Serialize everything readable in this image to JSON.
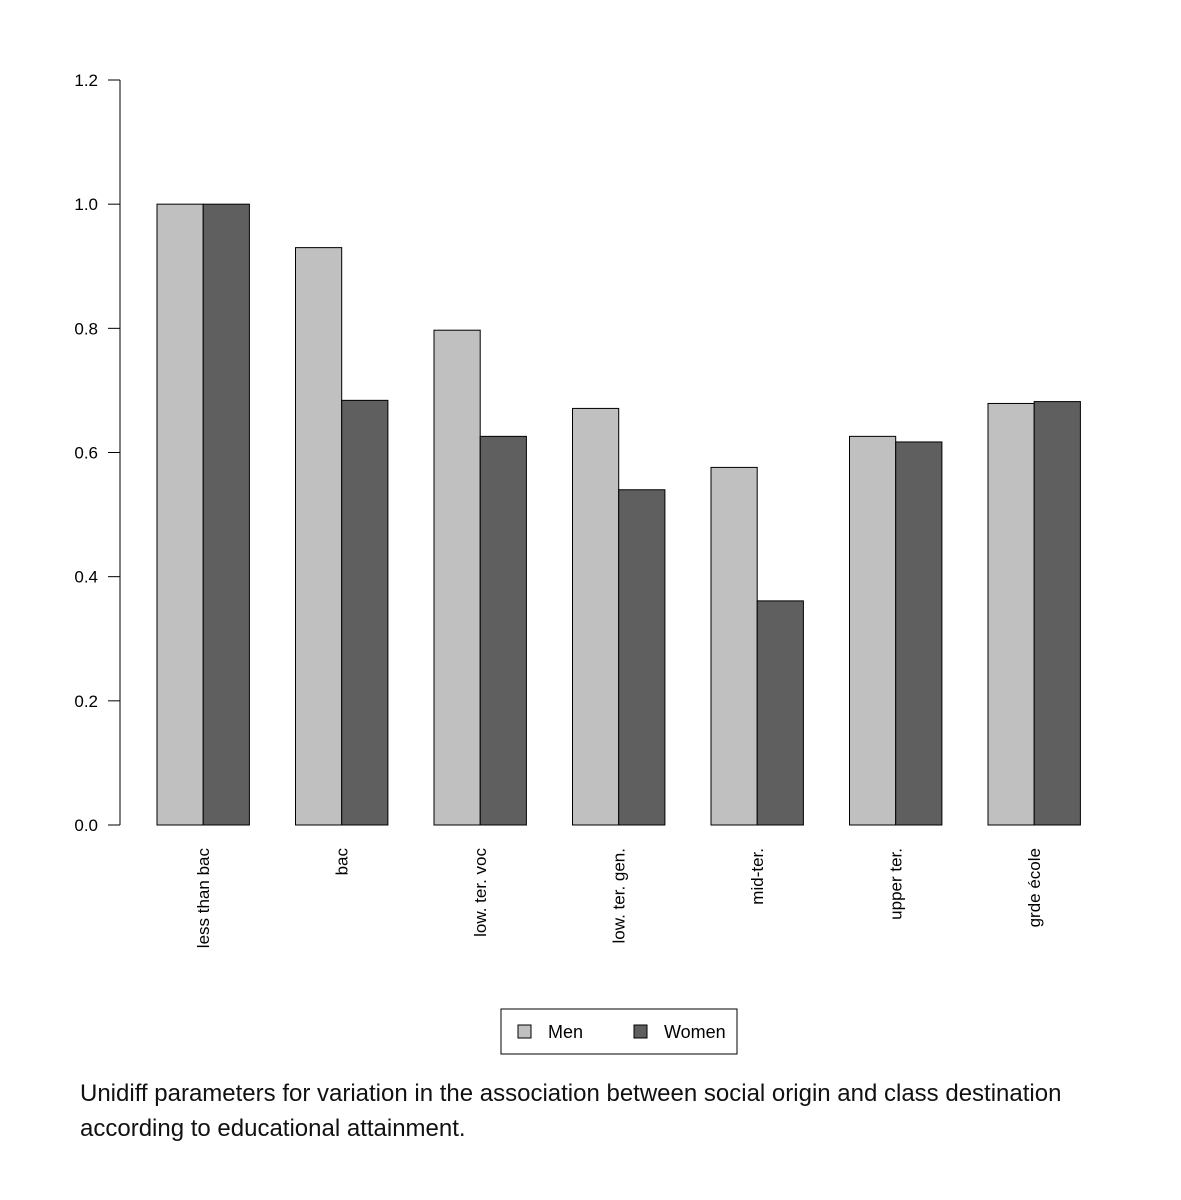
{
  "chart_data": {
    "type": "bar",
    "categories": [
      "less than bac",
      "bac",
      "low. ter. voc",
      "low. ter. gen.",
      "mid-ter.",
      "upper ter.",
      "grde école"
    ],
    "series": [
      {
        "name": "Men",
        "color": "#c0c0c0",
        "values": [
          1.0,
          0.93,
          0.797,
          0.671,
          0.576,
          0.626,
          0.679
        ]
      },
      {
        "name": "Women",
        "color": "#5f5f5f",
        "values": [
          1.0,
          0.684,
          0.626,
          0.54,
          0.361,
          0.617,
          0.682
        ]
      }
    ],
    "ylim": [
      0,
      1.2
    ],
    "yticks": [
      "0.0",
      "0.2",
      "0.4",
      "0.6",
      "0.8",
      "1.0",
      "1.2"
    ],
    "legend_position": "bottom",
    "grid": false,
    "title": "",
    "xlabel": "",
    "ylabel": ""
  },
  "caption": "Unidiff parameters for variation in the association between social origin and class destination according to educational attainment."
}
